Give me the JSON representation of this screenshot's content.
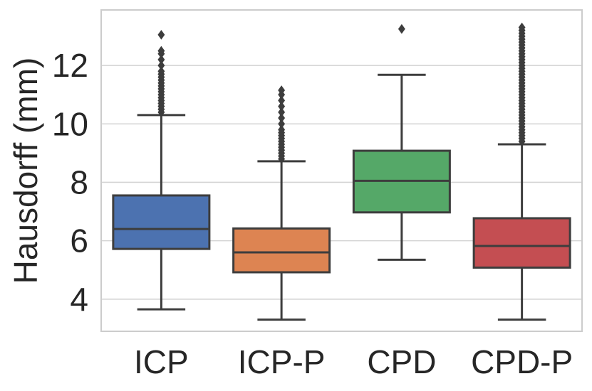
{
  "chart_data": {
    "type": "box",
    "title": "",
    "xlabel": "",
    "ylabel": "Hausdorff (mm)",
    "ylim": [
      2.9,
      13.9
    ],
    "yticks": [
      4,
      6,
      8,
      10,
      12
    ],
    "grid": "horizontal",
    "categories": [
      "ICP",
      "ICP-P",
      "CPD",
      "CPD-P"
    ],
    "colors": [
      "#4c72b0",
      "#dd8452",
      "#55a868",
      "#c44e52"
    ],
    "line_color": "#3d3d3d",
    "boxes": [
      {
        "label": "ICP",
        "whisker_low": 3.65,
        "q1": 5.72,
        "median": 6.4,
        "q3": 7.55,
        "whisker_high": 10.3,
        "outliers": [
          10.4,
          10.5,
          10.6,
          10.7,
          10.8,
          10.9,
          11.0,
          11.1,
          11.2,
          11.3,
          11.4,
          11.5,
          11.6,
          11.7,
          11.8,
          12.0,
          12.2,
          12.4,
          12.5,
          13.05
        ]
      },
      {
        "label": "ICP-P",
        "whisker_low": 3.3,
        "q1": 4.92,
        "median": 5.6,
        "q3": 6.42,
        "whisker_high": 8.72,
        "outliers": [
          8.8,
          8.9,
          9.0,
          9.1,
          9.2,
          9.3,
          9.4,
          9.5,
          9.6,
          9.7,
          9.8,
          10.0,
          10.2,
          10.4,
          10.6,
          10.8,
          11.0,
          11.15
        ]
      },
      {
        "label": "CPD",
        "whisker_low": 5.35,
        "q1": 6.97,
        "median": 8.05,
        "q3": 9.08,
        "whisker_high": 11.68,
        "outliers": [
          13.25
        ]
      },
      {
        "label": "CPD-P",
        "whisker_low": 3.3,
        "q1": 5.08,
        "median": 5.82,
        "q3": 6.77,
        "whisker_high": 9.3,
        "outliers": [
          9.4,
          9.5,
          9.6,
          9.7,
          9.8,
          9.9,
          10.0,
          10.1,
          10.2,
          10.3,
          10.4,
          10.5,
          10.6,
          10.7,
          10.8,
          10.9,
          11.0,
          11.1,
          11.2,
          11.3,
          11.4,
          11.5,
          11.6,
          11.7,
          11.8,
          11.9,
          12.0,
          12.1,
          12.2,
          12.3,
          12.4,
          12.5,
          12.6,
          12.7,
          12.8,
          12.9,
          13.0,
          13.1,
          13.2,
          13.3
        ]
      }
    ]
  }
}
